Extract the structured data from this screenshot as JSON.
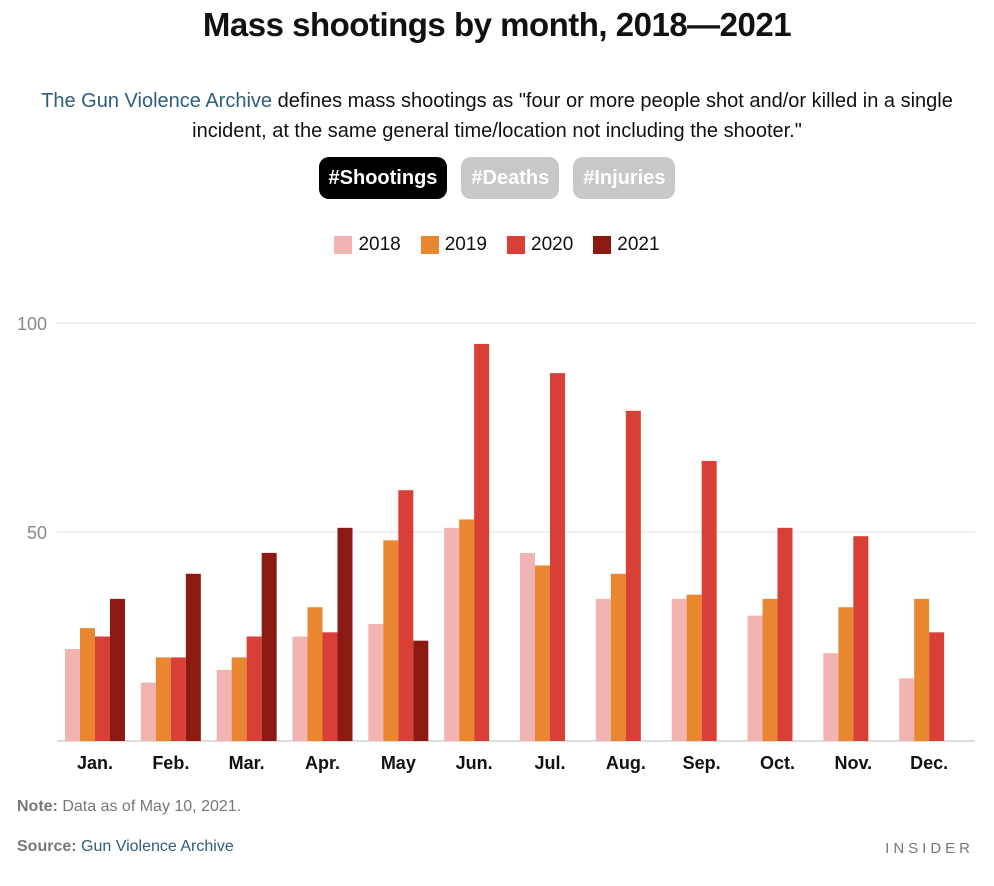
{
  "title": "Mass shootings by month, 2018—2021",
  "description": {
    "link_text": "The Gun Violence Archive",
    "text": " defines mass shootings as \"four or more people shot and/or killed in a single incident, at the same general time/location not including the shooter.\""
  },
  "toggles": [
    {
      "label": "#Shootings",
      "active": true
    },
    {
      "label": "#Deaths",
      "active": false
    },
    {
      "label": "#Injuries",
      "active": false
    }
  ],
  "note": {
    "label": "Note:",
    "text": " Data as of May 10, 2021."
  },
  "source": {
    "label": "Source:",
    "link_text": "Gun Violence Archive"
  },
  "brand": "INSIDER",
  "chart_data": {
    "type": "bar",
    "categories": [
      "Jan.",
      "Feb.",
      "Mar.",
      "Apr.",
      "May",
      "Jun.",
      "Jul.",
      "Aug.",
      "Sep.",
      "Oct.",
      "Nov.",
      "Dec."
    ],
    "series": [
      {
        "name": "2018",
        "color": "#f2b3b3",
        "values": [
          22,
          14,
          17,
          25,
          28,
          51,
          45,
          34,
          34,
          30,
          21,
          15
        ]
      },
      {
        "name": "2019",
        "color": "#e8872f",
        "values": [
          27,
          20,
          20,
          32,
          48,
          53,
          42,
          40,
          35,
          34,
          32,
          34
        ]
      },
      {
        "name": "2020",
        "color": "#d83f37",
        "values": [
          25,
          20,
          25,
          26,
          60,
          95,
          88,
          79,
          67,
          51,
          49,
          26
        ]
      },
      {
        "name": "2021",
        "color": "#8a1a12",
        "values": [
          34,
          40,
          45,
          51,
          24,
          null,
          null,
          null,
          null,
          null,
          null,
          null
        ]
      }
    ],
    "yticks": [
      50,
      100
    ],
    "ylim": [
      0,
      100
    ],
    "grid": true,
    "legend_position": "top-center",
    "xlabel": "",
    "ylabel": ""
  }
}
